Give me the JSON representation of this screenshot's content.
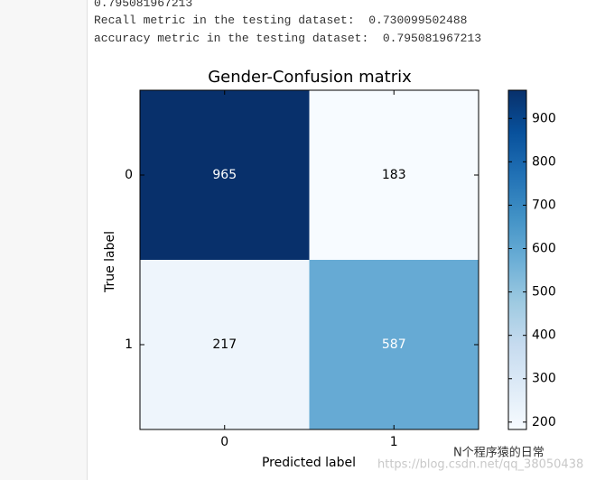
{
  "output_lines": [
    "0.795081967213",
    "Recall metric in the testing dataset:  0.730099502488",
    "accuracy metric in the testing dataset:  0.795081967213"
  ],
  "watermark": {
    "name": "N个程序猿的日常",
    "url": "https://blog.csdn.net/qq_38050438"
  },
  "chart_data": {
    "type": "heatmap",
    "title": "Gender-Confusion matrix",
    "x_label": "Predicted label",
    "y_label": "True label",
    "x_categories": [
      "0",
      "1"
    ],
    "y_categories": [
      "0",
      "1"
    ],
    "values": [
      [
        965,
        183
      ],
      [
        217,
        587
      ]
    ],
    "colormap": "Blues",
    "clim": [
      183,
      965
    ],
    "cticks": [
      200,
      300,
      400,
      500,
      600,
      700,
      800,
      900
    ]
  }
}
